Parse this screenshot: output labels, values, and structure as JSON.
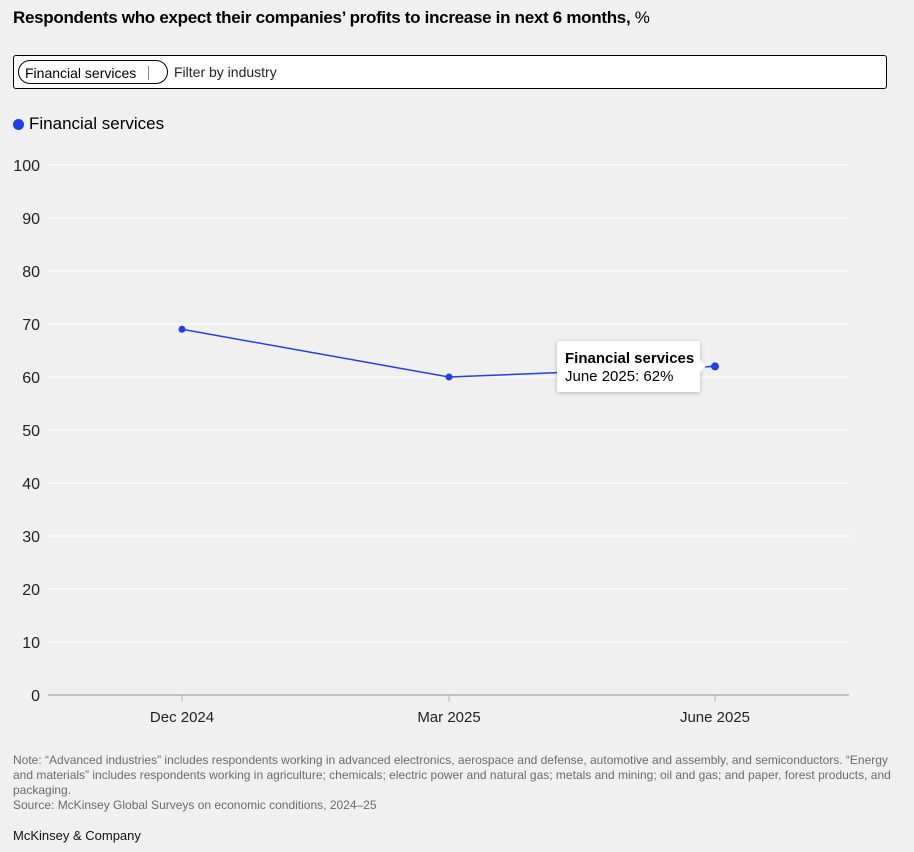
{
  "header": {
    "title": "Respondents who expect their companies’ profits to increase in next 6 months,",
    "unit": " %"
  },
  "filter": {
    "selected_chip": "Financial services",
    "placeholder": "Filter by industry"
  },
  "legend": {
    "items": [
      {
        "label": "Financial services",
        "color": "#1f40e6"
      }
    ]
  },
  "tooltip": {
    "title": "Financial services",
    "value": "June 2025: 62%"
  },
  "chart_data": {
    "type": "line",
    "categories": [
      "Dec 2024",
      "Mar 2025",
      "June 2025"
    ],
    "series": [
      {
        "name": "Financial services",
        "values": [
          69,
          60,
          62
        ],
        "color": "#1f40e6"
      }
    ],
    "ylim": [
      0,
      100
    ],
    "yticks": [
      0,
      10,
      20,
      30,
      40,
      50,
      60,
      70,
      80,
      90,
      100
    ],
    "grid": true,
    "legend_position": "top-left",
    "xlabel": "",
    "ylabel": ""
  },
  "footer": {
    "note": "Note: “Advanced industries” includes respondents working in advanced electronics, aerospace and defense, automotive and assembly, and semiconductors. “Energy and materials” includes respondents working in agriculture; chemicals; electric power and natural gas; metals and mining; oil and gas; and paper, forest products, and packaging.",
    "source": "Source: McKinsey Global Surveys on economic conditions, 2024–25",
    "brand": "McKinsey & Company"
  }
}
